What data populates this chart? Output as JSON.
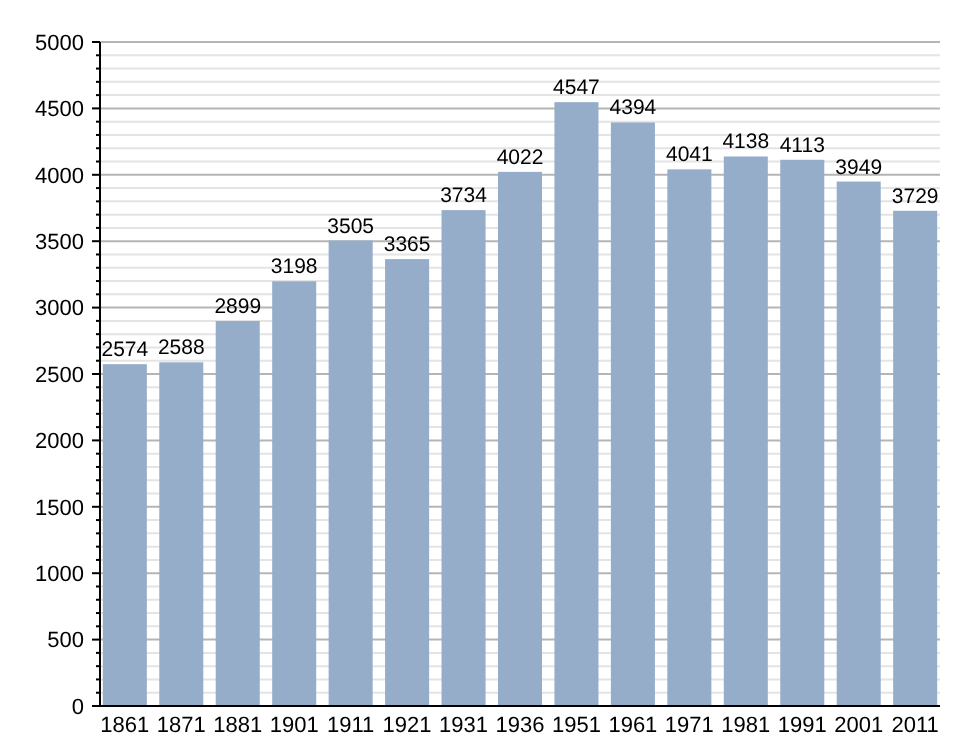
{
  "chart_data": {
    "type": "bar",
    "categories": [
      "1861",
      "1871",
      "1881",
      "1901",
      "1911",
      "1921",
      "1931",
      "1936",
      "1951",
      "1961",
      "1971",
      "1981",
      "1991",
      "2001",
      "2011"
    ],
    "values": [
      2574,
      2588,
      2899,
      3198,
      3505,
      3365,
      3734,
      4022,
      4547,
      4394,
      4041,
      4138,
      4113,
      3949,
      3729
    ],
    "color": "#95adc9",
    "ylim": [
      0,
      5000
    ],
    "yticks": [
      0,
      500,
      1000,
      1500,
      2000,
      2500,
      3000,
      3500,
      4000,
      4500,
      5000
    ],
    "grid": "y",
    "data_labels": true
  }
}
